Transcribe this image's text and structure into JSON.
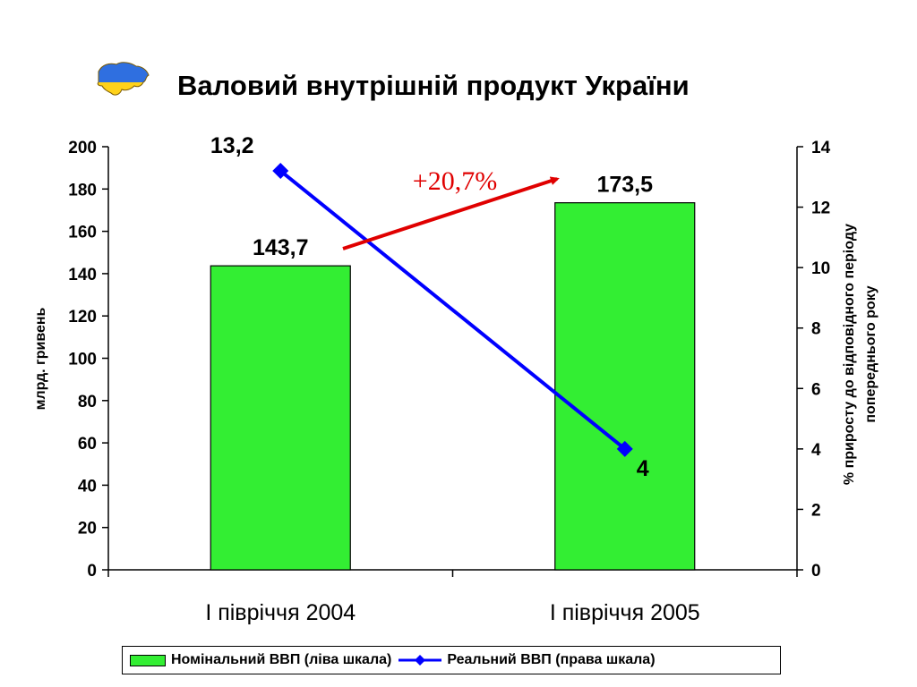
{
  "title": "Валовий внутрішній продукт України",
  "logo_icon": "ukraine-map-icon",
  "chart_data": {
    "type": "bar",
    "categories": [
      "І півріччя 2004",
      "І півріччя 2005"
    ],
    "series": [
      {
        "name": "Номінальний ВВП (ліва шкала)",
        "type": "bar",
        "axis": "left",
        "values": [
          143.7,
          173.5
        ],
        "labels": [
          "143,7",
          "173,5"
        ],
        "color": "#33ee33"
      },
      {
        "name": "Реальний ВВП (права шкала)",
        "type": "line",
        "axis": "right",
        "values": [
          13.2,
          4
        ],
        "labels": [
          "13,2",
          "4"
        ],
        "color": "#0000ff"
      }
    ],
    "ylabel": "млрд. гривень",
    "ylim": [
      0,
      200
    ],
    "yticks": [
      0,
      20,
      40,
      60,
      80,
      100,
      120,
      140,
      160,
      180,
      200
    ],
    "y2label": [
      "% приросту до відповідного періоду",
      "попереднього року"
    ],
    "y2lim": [
      0,
      14
    ],
    "y2ticks": [
      0,
      2,
      4,
      6,
      8,
      10,
      12,
      14
    ],
    "annotation": {
      "text": "+20,7%",
      "color": "#e00000"
    },
    "grid": false,
    "legend": "bottom"
  }
}
